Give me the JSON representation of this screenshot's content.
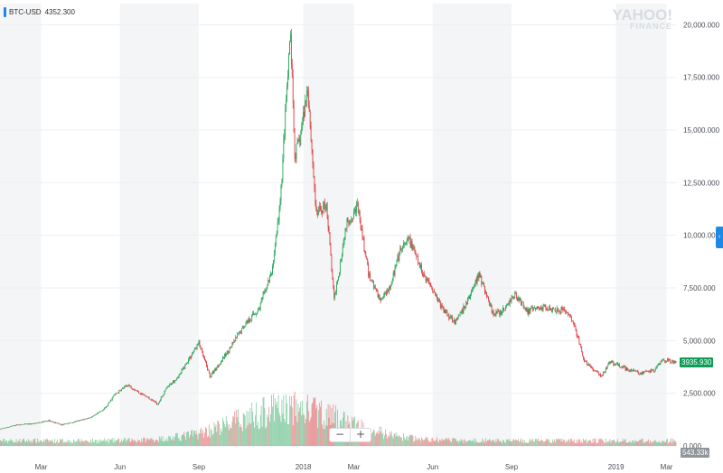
{
  "legend": {
    "symbol": "BTC-USD",
    "price": "4352.300"
  },
  "watermark": {
    "line1": "YAHOO!",
    "line2": "FINANCE"
  },
  "zoom": {
    "minus": "−",
    "plus": "+"
  },
  "side_tab": {
    "icon": "chevron-right-icon",
    "glyph": "›"
  },
  "price_badge": "3935.930",
  "volume_badge": "543.33k",
  "colors": {
    "up": "#26a65b",
    "down": "#e0393e",
    "band": "#f4f5f6",
    "grid": "#eceff1",
    "accent": "#1e88e5"
  },
  "chart_data": {
    "type": "candlestick",
    "title": "",
    "xlabel": "",
    "ylabel": "",
    "ylim": [
      0,
      21000
    ],
    "grid": true,
    "y_ticks": [
      "0.000",
      "2,500.000",
      "5,000.000",
      "7,500.000",
      "10,000.000",
      "12,500.000",
      "15,000.000",
      "17,500.000",
      "20,000.000"
    ],
    "x_ticks": [
      "Mar",
      "Jun",
      "Sep",
      "2018",
      "Mar",
      "Jun",
      "Sep",
      "2019",
      "Mar"
    ],
    "x_tick_dates": [
      "2017-03-01",
      "2017-06-01",
      "2017-09-01",
      "2018-01-01",
      "2018-03-01",
      "2018-06-01",
      "2018-09-01",
      "2019-01-01",
      "2019-03-01"
    ],
    "x_range": [
      "2017-01-12",
      "2019-03-12"
    ],
    "series": [
      {
        "approx_close_anchors": [
          [
            "2017-01-12",
            800
          ],
          [
            "2017-02-01",
            1000
          ],
          [
            "2017-02-20",
            1050
          ],
          [
            "2017-03-10",
            1200
          ],
          [
            "2017-03-25",
            1000
          ],
          [
            "2017-04-15",
            1200
          ],
          [
            "2017-05-01",
            1400
          ],
          [
            "2017-05-15",
            1800
          ],
          [
            "2017-05-25",
            2400
          ],
          [
            "2017-06-10",
            2900
          ],
          [
            "2017-06-25",
            2500
          ],
          [
            "2017-07-15",
            2000
          ],
          [
            "2017-07-25",
            2700
          ],
          [
            "2017-08-10",
            3400
          ],
          [
            "2017-08-20",
            4100
          ],
          [
            "2017-09-01",
            4900
          ],
          [
            "2017-09-14",
            3300
          ],
          [
            "2017-09-25",
            3900
          ],
          [
            "2017-10-10",
            4800
          ],
          [
            "2017-10-25",
            5800
          ],
          [
            "2017-11-10",
            6500
          ],
          [
            "2017-11-25",
            8200
          ],
          [
            "2017-12-05",
            11500
          ],
          [
            "2017-12-10",
            15000
          ],
          [
            "2017-12-17",
            19500
          ],
          [
            "2017-12-22",
            13800
          ],
          [
            "2017-12-28",
            14500
          ],
          [
            "2018-01-06",
            17100
          ],
          [
            "2018-01-16",
            11000
          ],
          [
            "2018-01-28",
            11500
          ],
          [
            "2018-02-06",
            6900
          ],
          [
            "2018-02-20",
            10500
          ],
          [
            "2018-03-05",
            11400
          ],
          [
            "2018-03-18",
            8200
          ],
          [
            "2018-04-01",
            6900
          ],
          [
            "2018-04-12",
            7600
          ],
          [
            "2018-04-25",
            9300
          ],
          [
            "2018-05-05",
            9800
          ],
          [
            "2018-05-20",
            8200
          ],
          [
            "2018-06-01",
            7500
          ],
          [
            "2018-06-12",
            6500
          ],
          [
            "2018-06-28",
            5900
          ],
          [
            "2018-07-10",
            6700
          ],
          [
            "2018-07-25",
            8200
          ],
          [
            "2018-08-10",
            6300
          ],
          [
            "2018-08-20",
            6300
          ],
          [
            "2018-09-05",
            7200
          ],
          [
            "2018-09-20",
            6400
          ],
          [
            "2018-10-10",
            6600
          ],
          [
            "2018-11-05",
            6400
          ],
          [
            "2018-11-15",
            5500
          ],
          [
            "2018-11-25",
            4000
          ],
          [
            "2018-12-15",
            3300
          ],
          [
            "2018-12-25",
            4000
          ],
          [
            "2019-01-10",
            3700
          ],
          [
            "2019-02-01",
            3450
          ],
          [
            "2019-02-15",
            3600
          ],
          [
            "2019-02-24",
            4100
          ],
          [
            "2019-03-12",
            3940
          ]
        ]
      }
    ],
    "volume_ylim": [
      0,
      20000000000
    ]
  }
}
